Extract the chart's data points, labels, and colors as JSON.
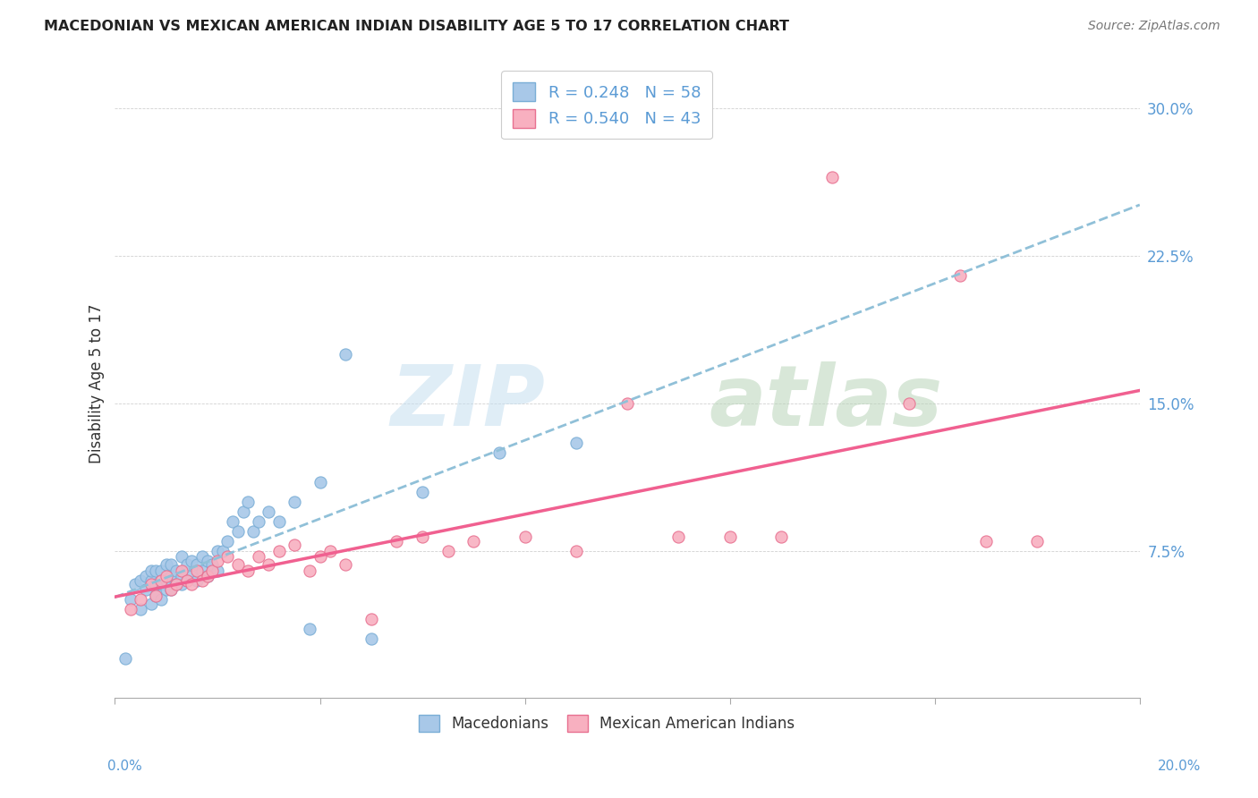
{
  "title": "MACEDONIAN VS MEXICAN AMERICAN INDIAN DISABILITY AGE 5 TO 17 CORRELATION CHART",
  "source": "Source: ZipAtlas.com",
  "ylabel": "Disability Age 5 to 17",
  "xmin": 0.0,
  "xmax": 0.2,
  "ymin": 0.0,
  "ymax": 0.32,
  "ytick_values": [
    0.0,
    0.075,
    0.15,
    0.225,
    0.3
  ],
  "ytick_labels": [
    "",
    "7.5%",
    "15.0%",
    "22.5%",
    "30.0%"
  ],
  "macedonian_color": "#a8c8e8",
  "macedonian_edge": "#7aaed6",
  "mexican_color": "#f8b0c0",
  "mexican_edge": "#e87090",
  "trend_macedonian_color": "#90c0d8",
  "trend_mexican_color": "#f06090",
  "macedonian_R": 0.248,
  "macedonian_N": 58,
  "mexican_R": 0.54,
  "mexican_N": 43,
  "macedonian_scatter_x": [
    0.002,
    0.003,
    0.004,
    0.005,
    0.005,
    0.006,
    0.006,
    0.007,
    0.007,
    0.007,
    0.008,
    0.008,
    0.008,
    0.009,
    0.009,
    0.009,
    0.01,
    0.01,
    0.01,
    0.011,
    0.011,
    0.011,
    0.012,
    0.012,
    0.013,
    0.013,
    0.013,
    0.014,
    0.014,
    0.015,
    0.015,
    0.016,
    0.016,
    0.017,
    0.017,
    0.018,
    0.018,
    0.019,
    0.02,
    0.02,
    0.021,
    0.022,
    0.023,
    0.024,
    0.025,
    0.026,
    0.027,
    0.028,
    0.03,
    0.032,
    0.035,
    0.038,
    0.04,
    0.045,
    0.05,
    0.06,
    0.075,
    0.09
  ],
  "macedonian_scatter_y": [
    0.02,
    0.05,
    0.058,
    0.045,
    0.06,
    0.055,
    0.062,
    0.048,
    0.06,
    0.065,
    0.052,
    0.058,
    0.065,
    0.05,
    0.058,
    0.065,
    0.055,
    0.06,
    0.068,
    0.055,
    0.062,
    0.068,
    0.058,
    0.065,
    0.058,
    0.062,
    0.072,
    0.06,
    0.068,
    0.062,
    0.07,
    0.06,
    0.068,
    0.065,
    0.072,
    0.062,
    0.07,
    0.068,
    0.065,
    0.075,
    0.075,
    0.08,
    0.09,
    0.085,
    0.095,
    0.1,
    0.085,
    0.09,
    0.095,
    0.09,
    0.1,
    0.035,
    0.11,
    0.175,
    0.03,
    0.105,
    0.125,
    0.13
  ],
  "mexican_scatter_x": [
    0.003,
    0.005,
    0.007,
    0.008,
    0.009,
    0.01,
    0.011,
    0.012,
    0.013,
    0.014,
    0.015,
    0.016,
    0.017,
    0.018,
    0.019,
    0.02,
    0.022,
    0.024,
    0.026,
    0.028,
    0.03,
    0.032,
    0.035,
    0.038,
    0.04,
    0.042,
    0.045,
    0.05,
    0.055,
    0.06,
    0.065,
    0.07,
    0.08,
    0.09,
    0.1,
    0.11,
    0.12,
    0.13,
    0.14,
    0.155,
    0.165,
    0.17,
    0.18
  ],
  "mexican_scatter_y": [
    0.045,
    0.05,
    0.058,
    0.052,
    0.06,
    0.062,
    0.055,
    0.058,
    0.065,
    0.06,
    0.058,
    0.065,
    0.06,
    0.062,
    0.065,
    0.07,
    0.072,
    0.068,
    0.065,
    0.072,
    0.068,
    0.075,
    0.078,
    0.065,
    0.072,
    0.075,
    0.068,
    0.04,
    0.08,
    0.082,
    0.075,
    0.08,
    0.082,
    0.075,
    0.15,
    0.082,
    0.082,
    0.082,
    0.265,
    0.15,
    0.215,
    0.08,
    0.08
  ]
}
